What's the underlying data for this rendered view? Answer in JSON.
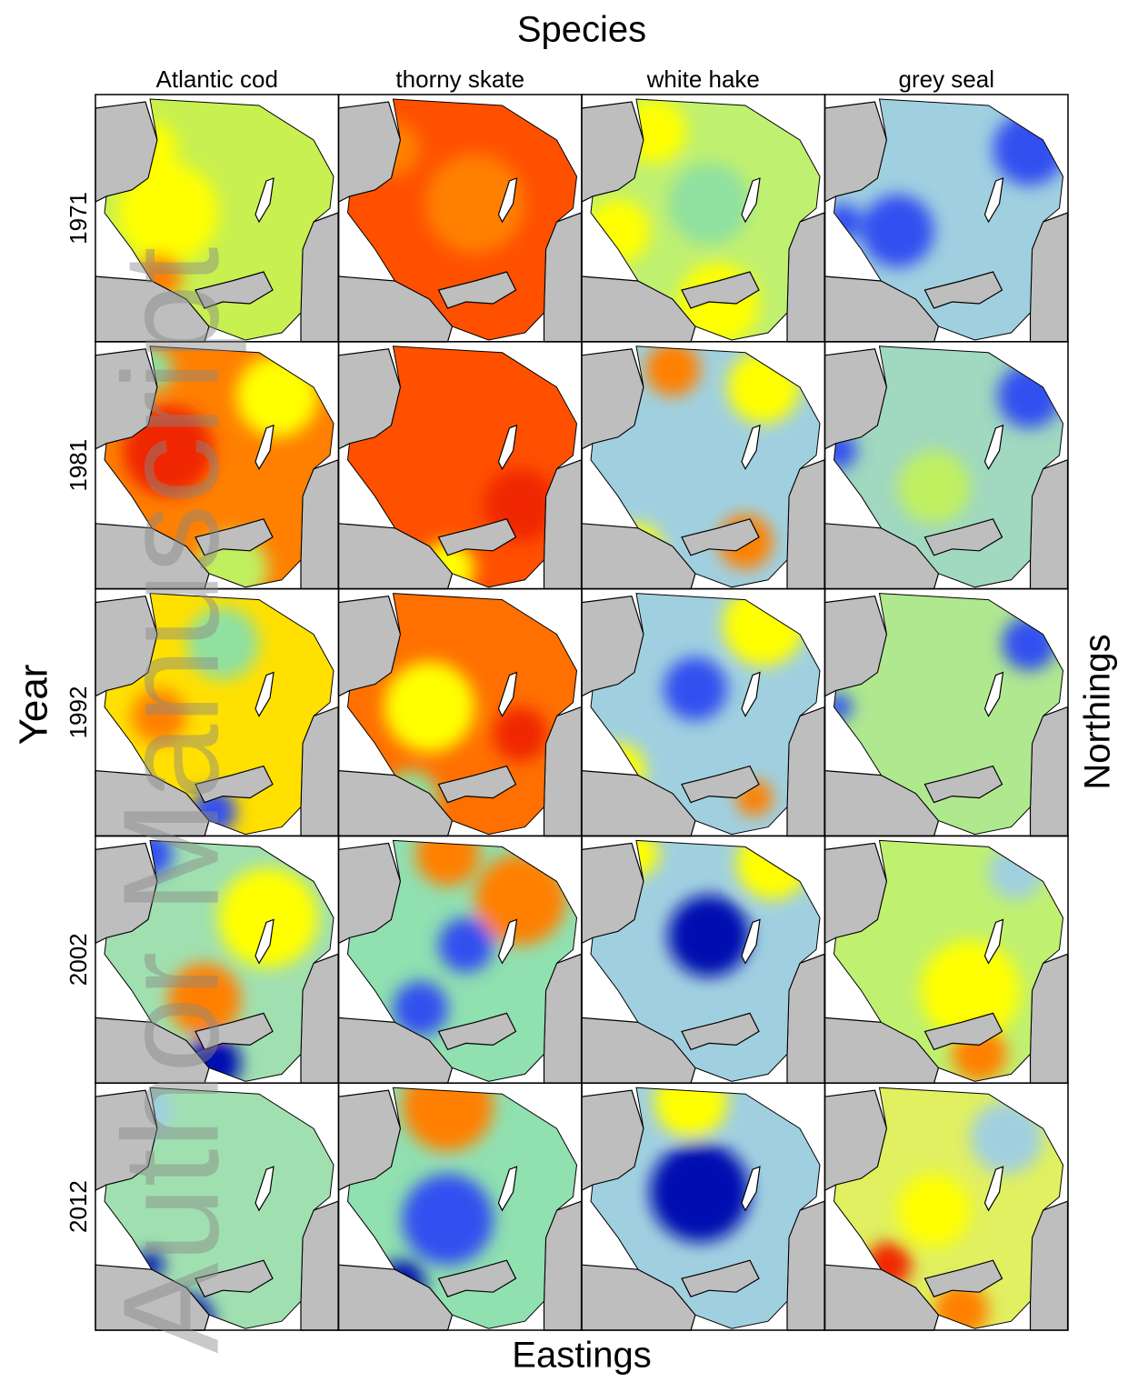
{
  "title": "Species",
  "species": [
    "Atlantic cod",
    "thorny skate",
    "white hake",
    "grey seal"
  ],
  "years": [
    "1971",
    "1981",
    "1992",
    "2002",
    "2012"
  ],
  "y_label": "Year",
  "right_label": "Northings",
  "x_label": "Eastings",
  "watermark": "Author Manuscript"
}
